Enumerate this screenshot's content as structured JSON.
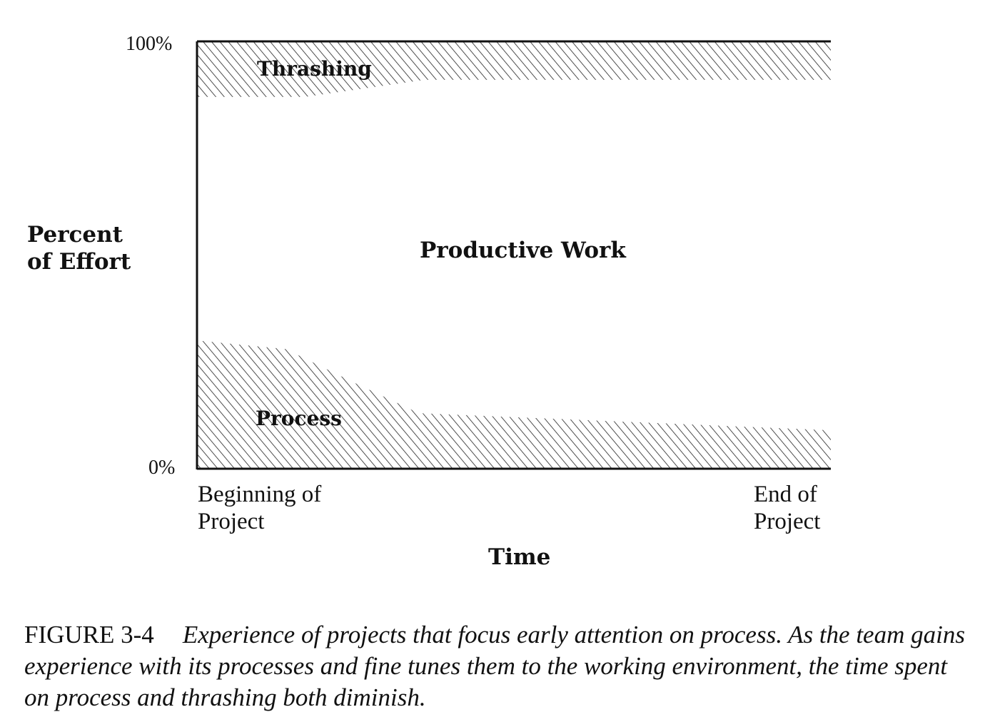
{
  "chart_data": {
    "type": "area",
    "stacked": true,
    "title": "",
    "xlabel": "Time",
    "ylabel": "Percent of Effort",
    "x_tick_labels": [
      "Beginning of Project",
      "End of Project"
    ],
    "y_tick_labels": [
      "0%",
      "100%"
    ],
    "ylim": [
      0,
      100
    ],
    "xlim": [
      0,
      1
    ],
    "grid": false,
    "legend": "none",
    "series": [
      {
        "name": "Process",
        "pattern": "hatched",
        "x": [
          0,
          0.14,
          0.25,
          0.35,
          1.0
        ],
        "values": [
          30,
          28,
          20,
          13,
          9
        ]
      },
      {
        "name": "Productive Work",
        "pattern": "blank",
        "x": [
          0,
          1.0
        ],
        "values": [
          "remainder",
          "remainder"
        ]
      },
      {
        "name": "Thrashing",
        "pattern": "hatched",
        "x": [
          0,
          0.17,
          0.36,
          1.0
        ],
        "values": [
          13,
          13,
          9,
          9
        ]
      }
    ],
    "colors": {
      "ink": "#111111",
      "background": "#ffffff"
    }
  },
  "caption": {
    "figure_label": "FIGURE 3-4",
    "text": "Experience of projects that focus early attention on process. As the team gains experience with its processes and fine tunes them to the working environment, the time spent on process and thrashing both diminish."
  }
}
